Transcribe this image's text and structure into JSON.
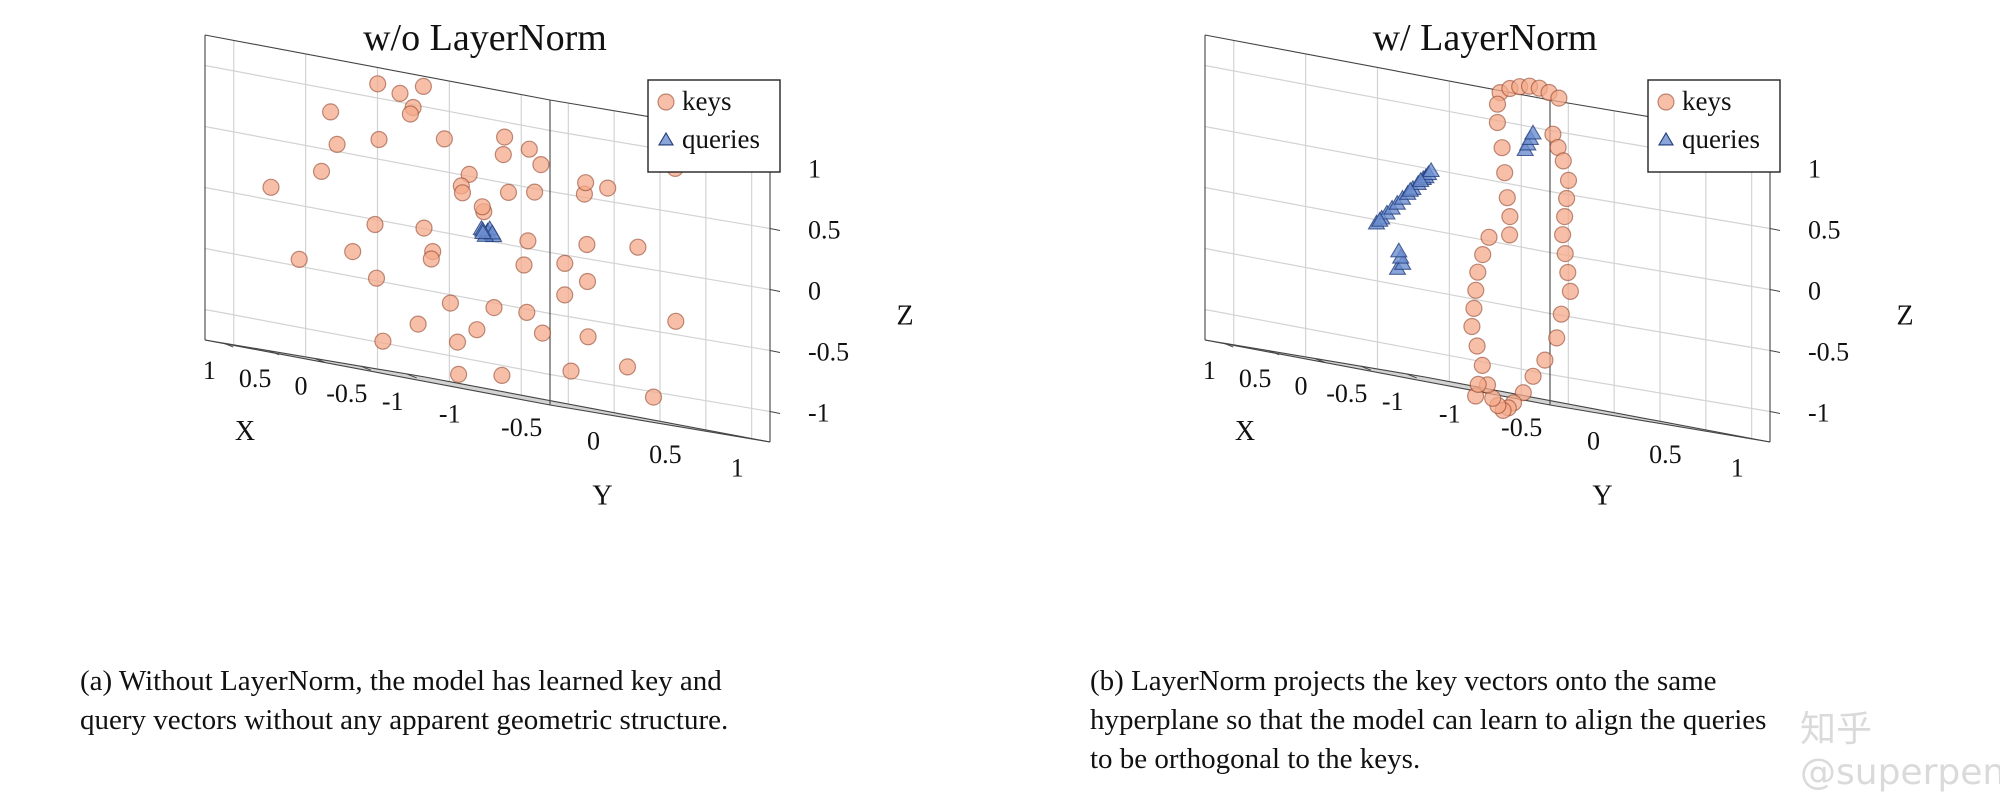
{
  "chart_data": [
    {
      "type": "scatter",
      "projection": "3d",
      "title": "w/o LayerNorm",
      "xlabel": "X",
      "ylabel": "Y",
      "zlabel": "Z",
      "xticks": [
        "-1",
        "-0.5",
        "0",
        "0.5",
        "1"
      ],
      "yticks": [
        "-1",
        "-0.5",
        "0",
        "0.5",
        "1"
      ],
      "zticks": [
        "-1",
        "-0.5",
        "0",
        "0.5",
        "1"
      ],
      "xlim": [
        -1.2,
        1.2
      ],
      "ylim": [
        -1.2,
        1.2
      ],
      "zlim": [
        -1.25,
        1.25
      ],
      "grid": true,
      "legend_position": "top-right",
      "legend": [
        "keys",
        "queries"
      ],
      "colors": {
        "keys": "#f4a98a",
        "queries": "#6d8fd0"
      },
      "series": [
        {
          "name": "keys",
          "marker": "circle",
          "points": [
            [
              -0.6,
              -0.9,
              0.95
            ],
            [
              -0.3,
              -0.8,
              1.05
            ],
            [
              -0.1,
              -0.6,
              0.9
            ],
            [
              0.1,
              -0.7,
              1.1
            ],
            [
              0.3,
              -0.9,
              0.8
            ],
            [
              -0.8,
              -0.4,
              0.7
            ],
            [
              -0.5,
              -0.2,
              0.85
            ],
            [
              0.0,
              -0.3,
              0.75
            ],
            [
              0.4,
              -0.5,
              0.65
            ],
            [
              0.7,
              -0.6,
              0.55
            ],
            [
              -0.9,
              0.1,
              0.5
            ],
            [
              -0.6,
              0.3,
              0.6
            ],
            [
              -0.2,
              0.2,
              0.45
            ],
            [
              0.2,
              0.0,
              0.5
            ],
            [
              0.6,
              0.2,
              0.4
            ],
            [
              0.9,
              0.4,
              0.35
            ],
            [
              -0.9,
              -0.6,
              0.2
            ],
            [
              -0.7,
              0.6,
              0.15
            ],
            [
              -0.3,
              0.5,
              0.1
            ],
            [
              0.5,
              0.6,
              0.05
            ],
            [
              0.85,
              0.1,
              0.0
            ],
            [
              -1.0,
              -0.1,
              -0.1
            ],
            [
              -0.5,
              -0.7,
              -0.2
            ],
            [
              0.3,
              -0.2,
              -0.25
            ],
            [
              0.7,
              0.7,
              -0.15
            ],
            [
              1.0,
              -0.3,
              -0.3
            ],
            [
              -0.8,
              0.8,
              -0.4
            ],
            [
              -0.2,
              -0.9,
              -0.5
            ],
            [
              0.4,
              0.3,
              -0.55
            ],
            [
              0.8,
              -0.8,
              -0.45
            ],
            [
              -0.6,
              0.0,
              -0.7
            ],
            [
              0.0,
              0.7,
              -0.65
            ],
            [
              0.6,
              -0.1,
              -0.8
            ],
            [
              -0.3,
              -0.4,
              -0.9
            ],
            [
              0.2,
              -0.6,
              -1.0
            ],
            [
              -0.9,
              0.4,
              -0.85
            ],
            [
              0.9,
              0.5,
              -0.75
            ],
            [
              -0.4,
              0.9,
              -1.05
            ],
            [
              0.5,
              0.9,
              -0.95
            ],
            [
              0.0,
              0.1,
              -1.1
            ],
            [
              -0.7,
              -0.3,
              0.4
            ],
            [
              0.4,
              -0.9,
              0.3
            ],
            [
              0.1,
              0.9,
              0.6
            ],
            [
              -0.1,
              -0.1,
              0.25
            ],
            [
              0.6,
              -0.4,
              -0.05
            ],
            [
              -0.45,
              0.25,
              -0.35
            ],
            [
              0.25,
              0.45,
              0.8
            ],
            [
              -0.85,
              -0.8,
              -0.6
            ],
            [
              0.75,
              0.85,
              0.7
            ],
            [
              -0.15,
              0.6,
              -0.2
            ],
            [
              0.95,
              -0.9,
              0.1
            ],
            [
              -0.95,
              0.7,
              0.85
            ],
            [
              0.15,
              -0.35,
              1.15
            ],
            [
              -0.35,
              0.05,
              -0.55
            ],
            [
              0.55,
              0.15,
              -1.15
            ]
          ]
        },
        {
          "name": "queries",
          "marker": "triangle",
          "points": [
            [
              0.0,
              0.0,
              0.05
            ],
            [
              0.03,
              0.02,
              0.06
            ],
            [
              -0.03,
              -0.02,
              0.04
            ],
            [
              0.02,
              -0.03,
              0.07
            ],
            [
              -0.02,
              0.03,
              0.03
            ],
            [
              0.04,
              0.01,
              0.02
            ],
            [
              -0.04,
              -0.01,
              0.08
            ],
            [
              0.01,
              0.04,
              0.05
            ],
            [
              -0.01,
              -0.04,
              0.06
            ],
            [
              0.05,
              0.0,
              0.04
            ]
          ]
        }
      ]
    },
    {
      "type": "scatter",
      "projection": "3d",
      "title": "w/ LayerNorm",
      "xlabel": "X",
      "ylabel": "Y",
      "zlabel": "Z",
      "xticks": [
        "-1",
        "-0.5",
        "0",
        "0.5",
        "1"
      ],
      "yticks": [
        "-1",
        "-0.5",
        "0",
        "0.5",
        "1"
      ],
      "zticks": [
        "-1",
        "-0.5",
        "0",
        "0.5",
        "1"
      ],
      "xlim": [
        -1.2,
        1.2
      ],
      "ylim": [
        -1.2,
        1.2
      ],
      "zlim": [
        -1.25,
        1.25
      ],
      "grid": true,
      "legend_position": "top-right",
      "legend": [
        "keys",
        "queries"
      ],
      "colors": {
        "keys": "#f4a98a",
        "queries": "#6d8fd0"
      },
      "series": [
        {
          "name": "keys",
          "marker": "circle",
          "points": [
            [
              -1.0,
              -0.55,
              1.2
            ],
            [
              -0.95,
              -0.45,
              1.25
            ],
            [
              -0.9,
              -0.35,
              1.28
            ],
            [
              -0.85,
              -0.25,
              1.3
            ],
            [
              -0.8,
              -0.15,
              1.3
            ],
            [
              -0.75,
              -0.05,
              1.28
            ],
            [
              -0.7,
              0.05,
              1.25
            ],
            [
              -1.05,
              -0.6,
              1.1
            ],
            [
              -1.08,
              -0.62,
              0.95
            ],
            [
              -1.1,
              -0.6,
              0.75
            ],
            [
              -1.05,
              -0.55,
              0.55
            ],
            [
              -1.0,
              -0.5,
              0.35
            ],
            [
              -0.95,
              -0.45,
              0.2
            ],
            [
              -0.9,
              -0.42,
              0.05
            ],
            [
              -0.4,
              0.2,
              0.95
            ],
            [
              -0.3,
              0.3,
              0.85
            ],
            [
              -0.2,
              0.4,
              0.75
            ],
            [
              -0.1,
              0.5,
              0.6
            ],
            [
              0.0,
              0.55,
              0.45
            ],
            [
              0.1,
              0.6,
              0.3
            ],
            [
              0.2,
              0.65,
              0.15
            ],
            [
              0.25,
              0.7,
              0.0
            ],
            [
              0.3,
              0.75,
              -0.15
            ],
            [
              0.35,
              0.8,
              -0.3
            ],
            [
              0.45,
              0.8,
              -0.5
            ],
            [
              0.5,
              0.8,
              -0.7
            ],
            [
              0.55,
              0.75,
              -0.9
            ],
            [
              0.6,
              0.7,
              -1.05
            ],
            [
              0.55,
              0.6,
              -1.2
            ],
            [
              0.5,
              0.5,
              -1.3
            ],
            [
              0.4,
              0.4,
              -1.35
            ],
            [
              0.3,
              0.3,
              -1.38
            ],
            [
              0.2,
              0.2,
              -1.35
            ],
            [
              0.1,
              0.1,
              -1.3
            ],
            [
              0.0,
              0.0,
              -1.2
            ],
            [
              -0.1,
              -0.1,
              -1.05
            ],
            [
              -0.2,
              -0.2,
              -0.9
            ],
            [
              -0.3,
              -0.3,
              -0.75
            ],
            [
              -0.4,
              -0.35,
              -0.6
            ],
            [
              -0.5,
              -0.4,
              -0.45
            ],
            [
              -0.6,
              -0.45,
              -0.3
            ],
            [
              -0.7,
              -0.48,
              -0.15
            ],
            [
              -0.8,
              -0.5,
              0.0
            ],
            [
              0.6,
              0.3,
              -1.3
            ],
            [
              0.65,
              0.35,
              -1.2
            ]
          ]
        },
        {
          "name": "queries",
          "marker": "triangle",
          "points": [
            [
              -0.2,
              -0.9,
              -0.05
            ],
            [
              -0.1,
              -0.8,
              0.0
            ],
            [
              0.0,
              -0.7,
              0.05
            ],
            [
              0.1,
              -0.6,
              0.1
            ],
            [
              0.2,
              -0.5,
              0.15
            ],
            [
              0.3,
              -0.4,
              0.2
            ],
            [
              0.4,
              -0.3,
              0.25
            ],
            [
              0.5,
              -0.2,
              0.3
            ],
            [
              0.6,
              -0.1,
              0.35
            ],
            [
              0.7,
              0.0,
              0.4
            ],
            [
              0.75,
              0.05,
              0.42
            ],
            [
              0.8,
              0.1,
              0.45
            ],
            [
              0.85,
              0.15,
              0.48
            ],
            [
              -0.9,
              -1.2,
              -0.4
            ],
            [
              -0.8,
              -1.1,
              -0.35
            ],
            [
              -0.7,
              -1.05,
              -0.3
            ],
            [
              -0.6,
              -1.0,
              -0.25
            ],
            [
              1.0,
              0.9,
              0.8
            ],
            [
              1.05,
              0.95,
              0.85
            ],
            [
              1.1,
              1.0,
              0.9
            ],
            [
              1.15,
              1.05,
              0.95
            ],
            [
              0.0,
              -0.75,
              -0.02
            ],
            [
              0.45,
              -0.25,
              0.28
            ],
            [
              0.65,
              -0.05,
              0.38
            ]
          ]
        }
      ]
    }
  ],
  "captions": {
    "a": [
      "(a) Without LayerNorm, the model has learned key and",
      "query vectors without any apparent geometric structure."
    ],
    "b": [
      "(b) LayerNorm projects the key vectors onto the same",
      "hyperplane so that the model can learn to align the queries",
      "to be orthogonal to the keys."
    ]
  },
  "watermark": "知乎 @superpeng"
}
